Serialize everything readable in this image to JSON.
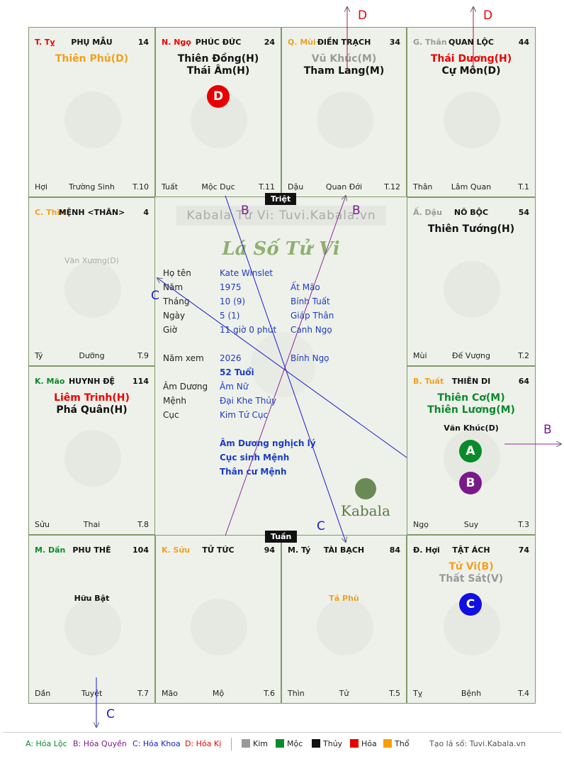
{
  "cells": [
    {
      "id": "ty",
      "can": "T. Tỵ",
      "cancolor": "#e00",
      "palace": "PHỤ MẪU",
      "num": "14",
      "stars": [
        {
          "t": "Thiên Phủ(D)",
          "c": "#f0a020"
        }
      ],
      "bl": "Hợi",
      "bm": "Trường Sinh",
      "br": "T.10"
    },
    {
      "id": "ngo",
      "can": "N. Ngọ",
      "cancolor": "#e00",
      "palace": "PHÚC ĐỨC",
      "num": "24",
      "stars": [
        {
          "t": "Thiên Đồng(H)",
          "c": "#111"
        },
        {
          "t": "Thái Âm(H)",
          "c": "#111"
        }
      ],
      "bl": "Tuất",
      "bm": "Mộc Dục",
      "br": "T.11"
    },
    {
      "id": "mui",
      "can": "Q. Mùi",
      "cancolor": "#f0a020",
      "palace": "ĐIỀN TRẠCH",
      "num": "34",
      "stars": [
        {
          "t": "Vũ Khúc(M)",
          "c": "#999"
        },
        {
          "t": "Tham Lang(M)",
          "c": "#111"
        }
      ],
      "bl": "Dậu",
      "bm": "Quan Đới",
      "br": "T.12"
    },
    {
      "id": "than",
      "can": "G. Thân",
      "cancolor": "#999",
      "palace": "QUAN LỘC",
      "num": "44",
      "stars": [
        {
          "t": "Thái Dương(H)",
          "c": "#e00"
        },
        {
          "t": "Cự Môn(D)",
          "c": "#111"
        }
      ],
      "bl": "Thân",
      "bm": "Lâm Quan",
      "br": "T.1"
    },
    {
      "id": "thin",
      "can": "C. Thìn",
      "cancolor": "#f0a020",
      "palace": "MỆNH <THÂN>",
      "num": "4",
      "stars": [],
      "minor": "Văn Xương(D)",
      "minorcolor": "#aaa",
      "bl": "Tý",
      "bm": "Dưỡng",
      "br": "T.9"
    },
    {
      "id": "dau",
      "can": "Ấ. Dậu",
      "cancolor": "#999",
      "palace": "NÔ BỘC",
      "num": "54",
      "stars": [
        {
          "t": "Thiên Tướng(H)",
          "c": "#111"
        }
      ],
      "bl": "Mùi",
      "bm": "Đế Vượng",
      "br": "T.2"
    },
    {
      "id": "mao",
      "can": "K. Mão",
      "cancolor": "#0a8a2a",
      "palace": "HUYNH ĐỆ",
      "num": "114",
      "stars": [
        {
          "t": "Liêm Trinh(H)",
          "c": "#e00"
        },
        {
          "t": "Phá Quân(H)",
          "c": "#111"
        }
      ],
      "bl": "Sửu",
      "bm": "Thai",
      "br": "T.8"
    },
    {
      "id": "tuat",
      "can": "B. Tuất",
      "cancolor": "#f0a020",
      "palace": "THIÊN DI",
      "num": "64",
      "stars": [
        {
          "t": "Thiên Cơ(M)",
          "c": "#0a8a2a"
        },
        {
          "t": "Thiên Lương(M)",
          "c": "#0a8a2a"
        }
      ],
      "minor": "Văn Khúc(D)",
      "minorcolor": "#111",
      "bl": "Ngọ",
      "bm": "Suy",
      "br": "T.3"
    },
    {
      "id": "dan",
      "can": "M. Dần",
      "cancolor": "#0a8a2a",
      "palace": "PHU THÊ",
      "num": "104",
      "stars": [],
      "minor": "Hữu Bật",
      "minorcolor": "#111",
      "bl": "Dần",
      "bm": "Tuyệt",
      "br": "T.7"
    },
    {
      "id": "suu",
      "can": "K. Sửu",
      "cancolor": "#f0a020",
      "palace": "TỬ TỨC",
      "num": "94",
      "stars": [],
      "bl": "Mão",
      "bm": "Mộ",
      "br": "T.6"
    },
    {
      "id": "tyy",
      "can": "M. Tý",
      "cancolor": "#111",
      "palace": "TÀI BẠCH",
      "num": "84",
      "stars": [],
      "minor": "Tả Phù",
      "minorcolor": "#f0a020",
      "bl": "Thìn",
      "bm": "Tử",
      "br": "T.5"
    },
    {
      "id": "hoi",
      "can": "Đ. Hợi",
      "cancolor": "#111",
      "palace": "TẬT ÁCH",
      "num": "74",
      "stars": [
        {
          "t": "Tử Vi(B)",
          "c": "#f0a020"
        },
        {
          "t": "Thất Sát(V)",
          "c": "#999"
        }
      ],
      "bl": "Tỵ",
      "bm": "Bệnh",
      "br": "T.4"
    }
  ],
  "markers": {
    "d": "D",
    "a": "A",
    "b": "B",
    "c": "C"
  },
  "center": {
    "triet": "Triệt",
    "tuan": "Tuần",
    "watermark": "Kabala Tử Vi: Tuvi.Kabala.vn",
    "title": "Lá Số Tử Vi",
    "rows": [
      {
        "l": "Họ tên",
        "v": "Kate Winslet",
        "x": ""
      },
      {
        "l": "Năm",
        "v": "1975",
        "x": "Ất Mão"
      },
      {
        "l": "Tháng",
        "v": "10  (9)",
        "x": "Bính Tuất"
      },
      {
        "l": "Ngày",
        "v": "5  (1)",
        "x": "Giáp Thân"
      },
      {
        "l": "Giờ",
        "v": "11 giờ 0 phút",
        "x": "Canh Ngọ"
      }
    ],
    "namxem_l": "Năm xem",
    "namxem_v": "2026",
    "namxem_x": "Bính Ngọ",
    "tuoi": "52 Tuổi",
    "rows2": [
      {
        "l": "Âm Dương",
        "v": "Âm Nữ"
      },
      {
        "l": "Mệnh",
        "v": "Đại Khe Thủy"
      },
      {
        "l": "Cục",
        "v": "Kim Tứ Cục"
      }
    ],
    "notes": [
      "Âm Dương nghịch lý",
      "Cục sinh Mệnh",
      "Thân cư Mệnh"
    ],
    "brand": "Kabala"
  },
  "legend": {
    "a": "A: Hóa Lộc",
    "b": "B: Hóa Quyền",
    "c": "C: Hóa Khoa",
    "d": "D: Hóa Kị",
    "kim": "Kim",
    "moc": "Mộc",
    "thuy": "Thủy",
    "hoa": "Hỏa",
    "tho": "Thổ",
    "site": "Tạo lá số: Tuvi.Kabala.vn",
    "colors": {
      "kim": "#999999",
      "moc": "#0a8a2a",
      "thuy": "#111111",
      "hoa": "#e60000",
      "tho": "#f5a000"
    }
  }
}
